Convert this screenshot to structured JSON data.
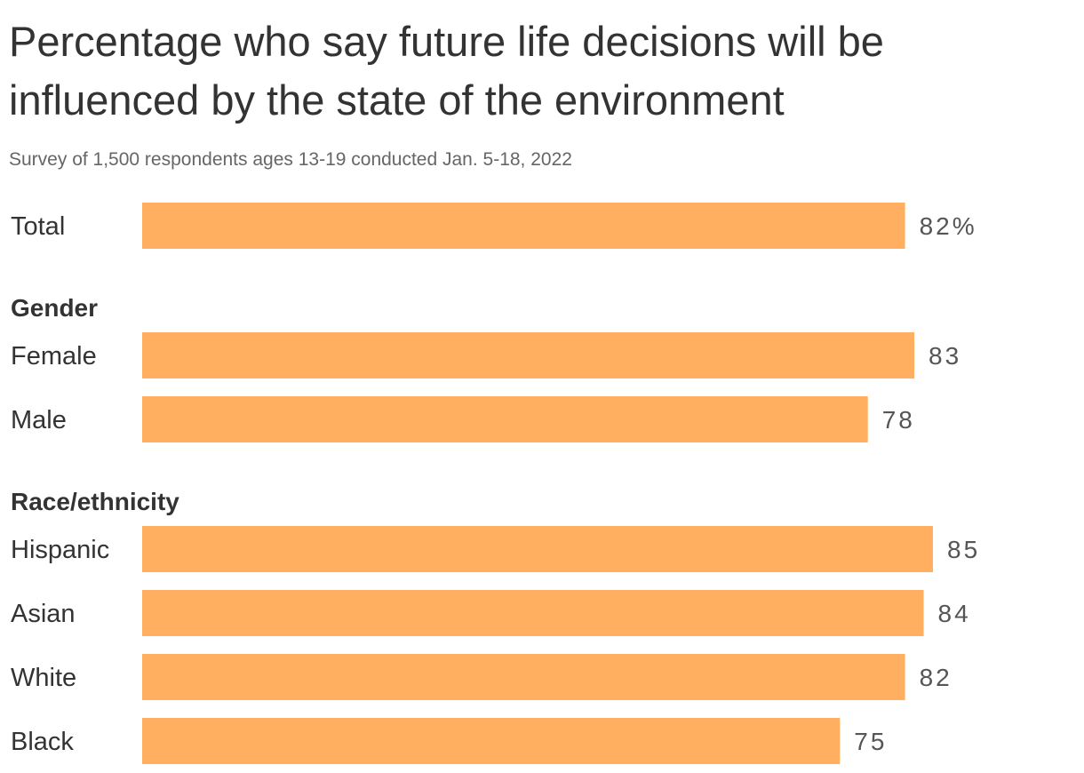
{
  "chart_data": {
    "type": "bar",
    "orientation": "horizontal",
    "title": "Percentage who say future life decisions will be influenced by the state of the environment",
    "subtitle": "Survey of 1,500 respondents ages 13-19 conducted Jan. 5-18, 2022",
    "bar_color": "#FFAF5F",
    "xlim": [
      0,
      85
    ],
    "grid": false,
    "groups": [
      {
        "label": "",
        "rows": [
          {
            "category": "Total",
            "value": 82,
            "value_label": "82%"
          }
        ]
      },
      {
        "label": "Gender",
        "rows": [
          {
            "category": "Female",
            "value": 83,
            "value_label": "83"
          },
          {
            "category": "Male",
            "value": 78,
            "value_label": "78"
          }
        ]
      },
      {
        "label": "Race/ethnicity",
        "rows": [
          {
            "category": "Hispanic",
            "value": 85,
            "value_label": "85"
          },
          {
            "category": "Asian",
            "value": 84,
            "value_label": "84"
          },
          {
            "category": "White",
            "value": 82,
            "value_label": "82"
          },
          {
            "category": "Black",
            "value": 75,
            "value_label": "75"
          }
        ]
      }
    ]
  }
}
